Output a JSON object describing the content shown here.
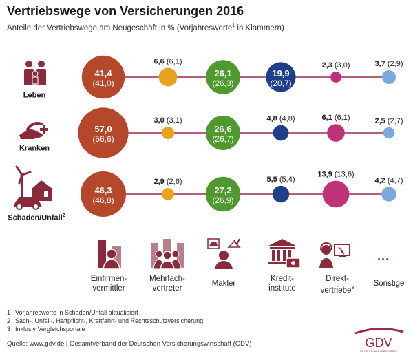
{
  "header": {
    "title": "Vertriebswege von Versicherungen 2016",
    "subtitle": "Anteile der Vertriebswege am Neugeschäft in % (Vorjahreswerte",
    "subtitle_sup": "1",
    "subtitle_end": " in Klammern)"
  },
  "colors": {
    "einfirmen": "#b5472a",
    "mehrfach": "#e8a21e",
    "makler": "#4e9a2e",
    "kredit": "#203f8a",
    "direkt": "#c03278",
    "sonstige": "#7aa9dc",
    "line": "#9c2a4a",
    "icon": "#8a2a3c"
  },
  "chart_data": {
    "type": "bubble",
    "title": "Vertriebswege von Versicherungen 2016",
    "categories": [
      "Einfirmenvermittler",
      "Mehrfachvertreter",
      "Makler",
      "Kreditinstitute",
      "Direktvertriebe",
      "Sonstige"
    ],
    "series": [
      {
        "name": "Leben",
        "values": [
          41.4,
          6.6,
          26.1,
          19.9,
          2.3,
          3.7
        ],
        "previous": [
          41.0,
          6.1,
          26.3,
          20.7,
          3.0,
          2.9
        ]
      },
      {
        "name": "Kranken",
        "values": [
          57.0,
          3.0,
          26.6,
          4.8,
          6.1,
          2.5
        ],
        "previous": [
          56.6,
          3.1,
          26.7,
          4.8,
          6.1,
          2.7
        ]
      },
      {
        "name": "Schaden/Unfall",
        "values": [
          46.3,
          2.9,
          27.2,
          5.5,
          13.9,
          4.2
        ],
        "previous": [
          46.8,
          2.6,
          26.9,
          5.4,
          13.6,
          4.7
        ]
      }
    ],
    "value_labels": [
      [
        [
          "41,4",
          "(41,0)"
        ],
        [
          "6,6",
          "(6,1)"
        ],
        [
          "26,1",
          "(26,3)"
        ],
        [
          "19,9",
          "(20,7)"
        ],
        [
          "2,3",
          "(3,0)"
        ],
        [
          "3,7",
          "(2,9)"
        ]
      ],
      [
        [
          "57,0",
          "(56,6)"
        ],
        [
          "3,0",
          "(3,1)"
        ],
        [
          "26,6",
          "(26,7)"
        ],
        [
          "4,8",
          "(4,8)"
        ],
        [
          "6,1",
          "(6,1)"
        ],
        [
          "2,5",
          "(2,7)"
        ]
      ],
      [
        [
          "46,3",
          "(46,8)"
        ],
        [
          "2,9",
          "(2,6)"
        ],
        [
          "27,2",
          "(26,9)"
        ],
        [
          "5,5",
          "(5,4)"
        ],
        [
          "13,9",
          "(13,6)"
        ],
        [
          "4,2",
          "(4,7)"
        ]
      ]
    ]
  },
  "rows": [
    {
      "label": "Leben",
      "sup": ""
    },
    {
      "label": "Kranken",
      "sup": ""
    },
    {
      "label": "Schaden/Unfall",
      "sup": "2"
    }
  ],
  "categories": [
    {
      "line1": "Einfirmen-",
      "line2": "vermittler",
      "sup": ""
    },
    {
      "line1": "Mehrfach-",
      "line2": "vertreter",
      "sup": ""
    },
    {
      "line1": "Makler",
      "line2": "",
      "sup": ""
    },
    {
      "line1": "Kredit-",
      "line2": "institute",
      "sup": ""
    },
    {
      "line1": "Direkt-",
      "line2": "vertriebe",
      "sup": "3"
    },
    {
      "line1": "Sonstige",
      "line2": "",
      "sup": ""
    }
  ],
  "sonstige_dots": "...",
  "footnotes": [
    {
      "n": "1",
      "text": "Vorjahreswerte in Schaden/Unfall aktualisiert"
    },
    {
      "n": "2",
      "text": "Sach-, Unfall-, Haftpflicht-, Kraftfahrt- und Rechtsschutzversicherung"
    },
    {
      "n": "3",
      "text": "Inklusiv Vergleichsportale"
    }
  ],
  "source": "Quelle: www.gdv.de | Gesamtverband der Deutschen Versicherungswirtschaft (GDV)",
  "logo": {
    "text": "GDV",
    "tagline": "DIE DEUTSCHEN VERSICHERER"
  }
}
